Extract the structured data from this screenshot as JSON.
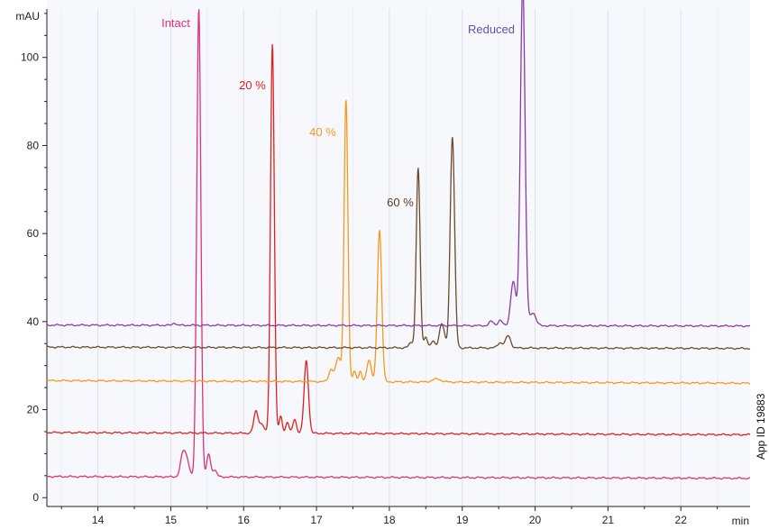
{
  "chart_data": {
    "type": "line",
    "xlabel": "min",
    "ylabel": "mAU",
    "xlim": [
      13.3,
      22.95
    ],
    "ylim": [
      -2,
      111
    ],
    "x_ticks": [
      14,
      15,
      16,
      17,
      18,
      19,
      20,
      21,
      22
    ],
    "y_ticks": [
      0,
      20,
      40,
      60,
      80,
      100
    ],
    "grid": "vertical-light",
    "annotation": "App ID 19883",
    "series": [
      {
        "name": "Intact",
        "color": "#e0307a",
        "baseline_start": 4.8,
        "baseline_end": 4.4,
        "peaks": [
          {
            "x": 15.17,
            "h": 5.5,
            "w": 0.035
          },
          {
            "x": 15.23,
            "h": 3.0,
            "w": 0.03
          },
          {
            "x": 15.385,
            "h": 106.5,
            "w": 0.028
          },
          {
            "x": 15.52,
            "h": 5.2,
            "w": 0.025
          },
          {
            "x": 15.6,
            "h": 1.6,
            "w": 0.03
          }
        ]
      },
      {
        "name": "20 %",
        "color": "#e02020",
        "baseline_start": 14.8,
        "baseline_end": 14.3,
        "peaks": [
          {
            "x": 16.17,
            "h": 5.0,
            "w": 0.03
          },
          {
            "x": 16.25,
            "h": 2.0,
            "w": 0.03
          },
          {
            "x": 16.395,
            "h": 88.5,
            "w": 0.026
          },
          {
            "x": 16.51,
            "h": 3.8,
            "w": 0.022
          },
          {
            "x": 16.6,
            "h": 2.5,
            "w": 0.022
          },
          {
            "x": 16.7,
            "h": 3.2,
            "w": 0.025
          },
          {
            "x": 16.86,
            "h": 16.5,
            "w": 0.03
          }
        ]
      },
      {
        "name": "40 %",
        "color": "#f39a1e",
        "baseline_start": 26.6,
        "baseline_end": 26.0,
        "peaks": [
          {
            "x": 17.2,
            "h": 2.8,
            "w": 0.03
          },
          {
            "x": 17.3,
            "h": 5.5,
            "w": 0.035
          },
          {
            "x": 17.405,
            "h": 64.0,
            "w": 0.026
          },
          {
            "x": 17.52,
            "h": 2.5,
            "w": 0.022
          },
          {
            "x": 17.6,
            "h": 2.2,
            "w": 0.022
          },
          {
            "x": 17.72,
            "h": 5.0,
            "w": 0.03
          },
          {
            "x": 17.865,
            "h": 34.5,
            "w": 0.03
          },
          {
            "x": 18.65,
            "h": 0.7,
            "w": 0.06
          }
        ]
      },
      {
        "name": "60 %",
        "color": "#6b4a2e",
        "baseline_start": 34.2,
        "baseline_end": 33.9,
        "peaks": [
          {
            "x": 18.3,
            "h": 1.2,
            "w": 0.03
          },
          {
            "x": 18.395,
            "h": 40.8,
            "w": 0.026
          },
          {
            "x": 18.5,
            "h": 2.5,
            "w": 0.025
          },
          {
            "x": 18.6,
            "h": 1.5,
            "w": 0.025
          },
          {
            "x": 18.72,
            "h": 5.5,
            "w": 0.035
          },
          {
            "x": 18.865,
            "h": 48.0,
            "w": 0.03
          },
          {
            "x": 19.52,
            "h": 1.2,
            "w": 0.035
          },
          {
            "x": 19.63,
            "h": 2.8,
            "w": 0.035
          }
        ]
      },
      {
        "name": "Reduced",
        "color": "#8a3aa8",
        "baseline_start": 39.2,
        "baseline_end": 39.0,
        "peaks": [
          {
            "x": 15.05,
            "h": 0.6,
            "w": 0.02
          },
          {
            "x": 19.4,
            "h": 1.0,
            "w": 0.03
          },
          {
            "x": 19.52,
            "h": 1.2,
            "w": 0.03
          },
          {
            "x": 19.7,
            "h": 10.0,
            "w": 0.035
          },
          {
            "x": 19.83,
            "h": 78.0,
            "w": 0.032
          },
          {
            "x": 19.97,
            "h": 3.0,
            "w": 0.04
          }
        ]
      }
    ]
  },
  "labels": {
    "y_unit": "mAU",
    "x_unit": "min",
    "series_names": [
      "Intact",
      "20 %",
      "40 %",
      "60 %",
      "Reduced"
    ],
    "app_id": "App ID 19883"
  }
}
